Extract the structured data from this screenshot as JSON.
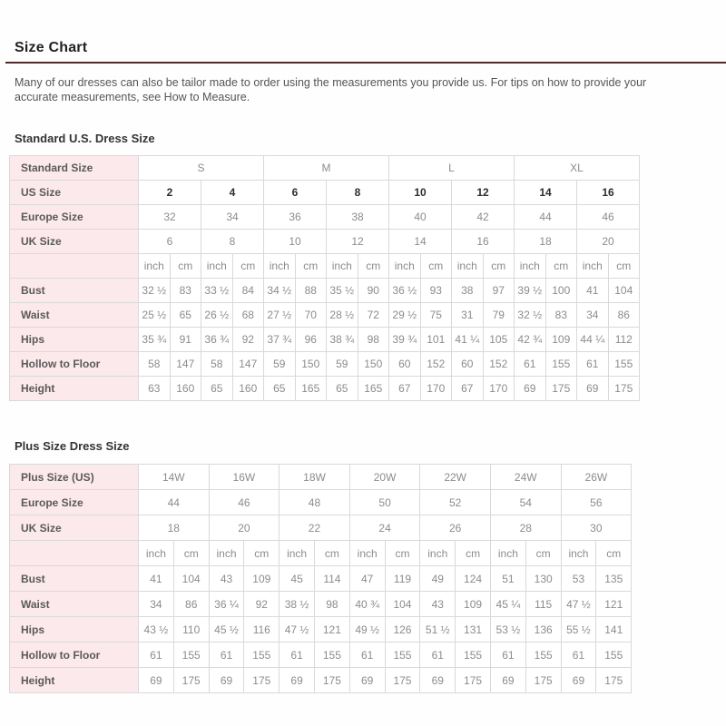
{
  "page": {
    "title": "Size Chart",
    "intro_line1": "Many of our dresses can also be tailor made to order using the measurements you provide us. For tips on how to provide your",
    "intro_line2_prefix": "accurate measurements, see ",
    "intro_link_text": "How to Measure",
    "intro_line2_suffix": ".",
    "accent_rule_color": "#4f2a2a",
    "label_column_color": "#fce9ec"
  },
  "standard_table": {
    "heading": "Standard U.S. Dress Size",
    "rows": [
      {
        "label": "Standard Size",
        "span": 4,
        "values": [
          "S",
          "M",
          "L",
          "XL"
        ]
      },
      {
        "label": "US Size",
        "span": 2,
        "bold": true,
        "values": [
          "2",
          "4",
          "6",
          "8",
          "10",
          "12",
          "14",
          "16"
        ]
      },
      {
        "label": "Europe Size",
        "span": 2,
        "values": [
          "32",
          "34",
          "36",
          "38",
          "40",
          "42",
          "44",
          "46"
        ]
      },
      {
        "label": "UK Size",
        "span": 2,
        "values": [
          "6",
          "8",
          "10",
          "12",
          "14",
          "16",
          "18",
          "20"
        ]
      },
      {
        "label": "",
        "span": 1,
        "values": [
          "inch",
          "cm",
          "inch",
          "cm",
          "inch",
          "cm",
          "inch",
          "cm",
          "inch",
          "cm",
          "inch",
          "cm",
          "inch",
          "cm",
          "inch",
          "cm"
        ]
      },
      {
        "label": "Bust",
        "span": 1,
        "values": [
          "32 ½",
          "83",
          "33 ½",
          "84",
          "34 ½",
          "88",
          "35 ½",
          "90",
          "36 ½",
          "93",
          "38",
          "97",
          "39 ½",
          "100",
          "41",
          "104"
        ]
      },
      {
        "label": "Waist",
        "span": 1,
        "values": [
          "25 ½",
          "65",
          "26 ½",
          "68",
          "27 ½",
          "70",
          "28 ½",
          "72",
          "29 ½",
          "75",
          "31",
          "79",
          "32 ½",
          "83",
          "34",
          "86"
        ]
      },
      {
        "label": "Hips",
        "span": 1,
        "values": [
          "35 ¾",
          "91",
          "36 ¾",
          "92",
          "37 ¾",
          "96",
          "38 ¾",
          "98",
          "39 ¾",
          "101",
          "41 ¼",
          "105",
          "42 ¾",
          "109",
          "44 ¼",
          "112"
        ]
      },
      {
        "label": "Hollow to Floor",
        "span": 1,
        "values": [
          "58",
          "147",
          "58",
          "147",
          "59",
          "150",
          "59",
          "150",
          "60",
          "152",
          "60",
          "152",
          "61",
          "155",
          "61",
          "155"
        ]
      },
      {
        "label": "Height",
        "span": 1,
        "values": [
          "63",
          "160",
          "65",
          "160",
          "65",
          "165",
          "65",
          "165",
          "67",
          "170",
          "67",
          "170",
          "69",
          "175",
          "69",
          "175"
        ]
      }
    ]
  },
  "plus_table": {
    "heading": "Plus Size Dress Size",
    "rows": [
      {
        "label": "Plus Size (US)",
        "span": 2,
        "values": [
          "14W",
          "16W",
          "18W",
          "20W",
          "22W",
          "24W",
          "26W"
        ]
      },
      {
        "label": "Europe Size",
        "span": 2,
        "values": [
          "44",
          "46",
          "48",
          "50",
          "52",
          "54",
          "56"
        ]
      },
      {
        "label": "UK Size",
        "span": 2,
        "values": [
          "18",
          "20",
          "22",
          "24",
          "26",
          "28",
          "30"
        ]
      },
      {
        "label": "",
        "span": 1,
        "values": [
          "inch",
          "cm",
          "inch",
          "cm",
          "inch",
          "cm",
          "inch",
          "cm",
          "inch",
          "cm",
          "inch",
          "cm",
          "inch",
          "cm"
        ]
      },
      {
        "label": "Bust",
        "span": 1,
        "values": [
          "41",
          "104",
          "43",
          "109",
          "45",
          "114",
          "47",
          "119",
          "49",
          "124",
          "51",
          "130",
          "53",
          "135"
        ]
      },
      {
        "label": "Waist",
        "span": 1,
        "values": [
          "34",
          "86",
          "36 ¼",
          "92",
          "38 ½",
          "98",
          "40 ¾",
          "104",
          "43",
          "109",
          "45 ¼",
          "115",
          "47 ½",
          "121"
        ]
      },
      {
        "label": "Hips",
        "span": 1,
        "values": [
          "43 ½",
          "110",
          "45 ½",
          "116",
          "47 ½",
          "121",
          "49 ½",
          "126",
          "51 ½",
          "131",
          "53 ½",
          "136",
          "55 ½",
          "141"
        ]
      },
      {
        "label": "Hollow to Floor",
        "span": 1,
        "values": [
          "61",
          "155",
          "61",
          "155",
          "61",
          "155",
          "61",
          "155",
          "61",
          "155",
          "61",
          "155",
          "61",
          "155"
        ]
      },
      {
        "label": "Height",
        "span": 1,
        "values": [
          "69",
          "175",
          "69",
          "175",
          "69",
          "175",
          "69",
          "175",
          "69",
          "175",
          "69",
          "175",
          "69",
          "175"
        ]
      }
    ]
  }
}
